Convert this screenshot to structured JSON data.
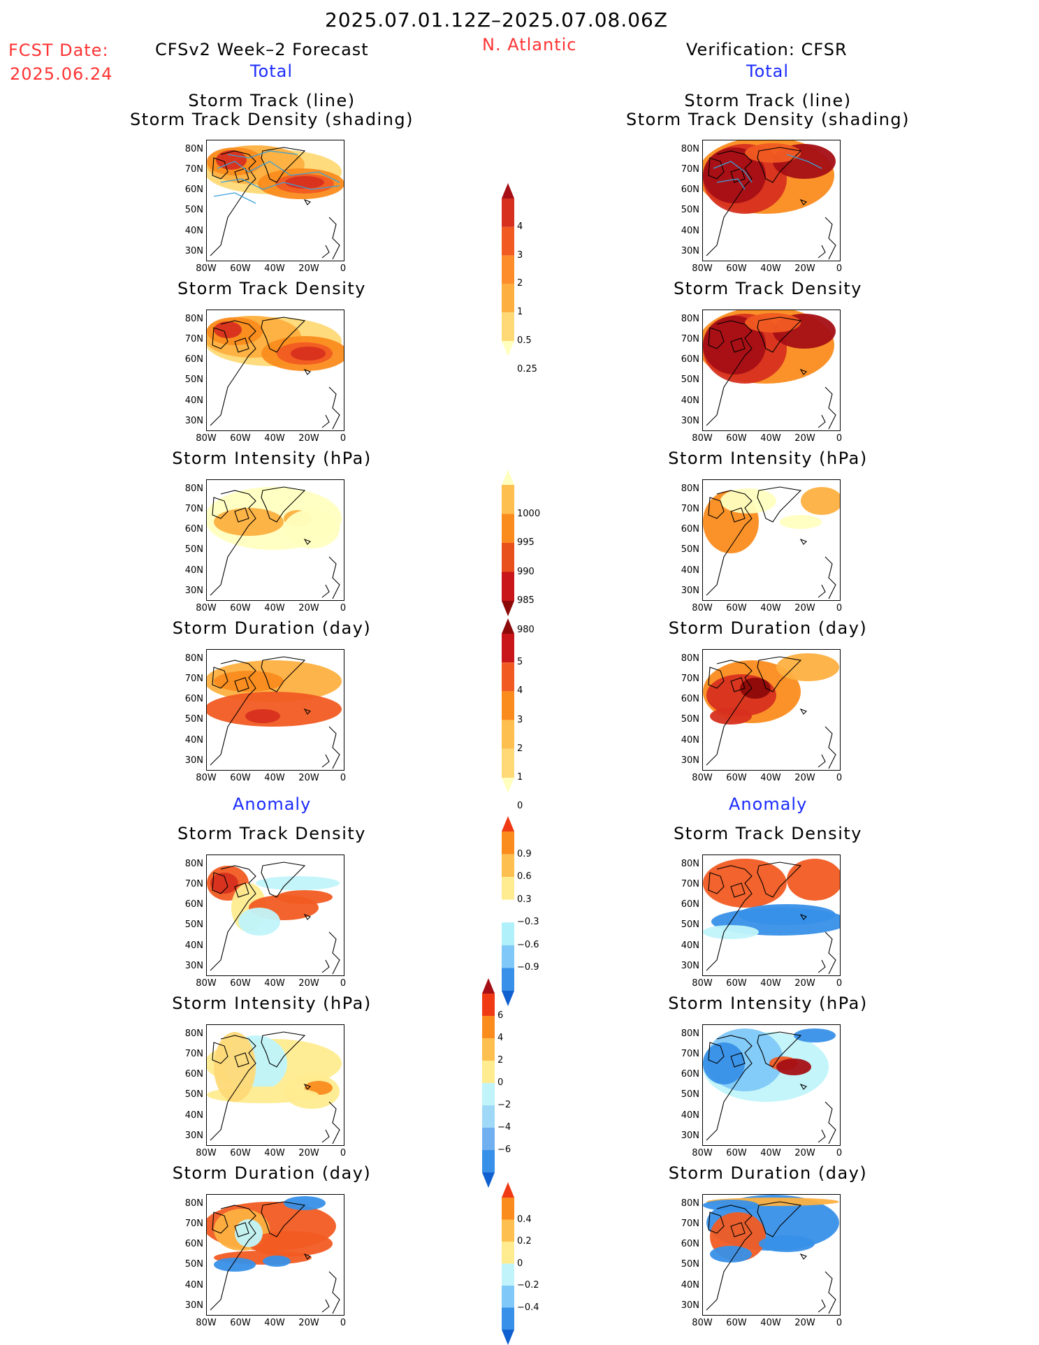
{
  "header": {
    "date_range": "2025.07.01.12Z–2025.07.08.06Z",
    "region": "N. Atlantic",
    "fcst_label": "FCST Date:",
    "fcst_date": "2025.06.24",
    "left_model": "CFSv2 Week–2 Forecast",
    "right_model": "Verification: CFSR",
    "total_label": "Total",
    "anomaly_label": "Anomaly"
  },
  "panels": {
    "track_title_1": "Storm Track (line)",
    "track_title_2": "Storm Track Density (shading)",
    "density": "Storm Track Density",
    "intensity": "Storm Intensity (hPa)",
    "duration": "Storm Duration (day)"
  },
  "axes": {
    "lat_ticks": [
      "80N",
      "70N",
      "60N",
      "50N",
      "40N",
      "30N"
    ],
    "lon_ticks": [
      "80W",
      "60W",
      "40W",
      "20W",
      "0"
    ]
  },
  "colorbars": {
    "density": {
      "labels": [
        "4",
        "3",
        "2",
        "1",
        "0.5",
        "0.25"
      ],
      "colors": [
        "#a50f15",
        "#d7301f",
        "#f15b22",
        "#fc8d2a",
        "#fdb040",
        "#fed976",
        "#ffffc0"
      ]
    },
    "intensity": {
      "labels": [
        "1000",
        "995",
        "990",
        "985",
        "980"
      ],
      "colors": [
        "#ffffc0",
        "#fdc050",
        "#fa8c1e",
        "#e8501c",
        "#c8161a",
        "#8c0a0a"
      ]
    },
    "duration": {
      "labels": [
        "5",
        "4",
        "3",
        "2",
        "1",
        "0"
      ],
      "colors": [
        "#8c0a0a",
        "#c8161a",
        "#f15b22",
        "#fa8c1e",
        "#fdc050",
        "#fed976",
        "#ffffc0"
      ]
    },
    "anom_density": {
      "labels": [
        "0.9",
        "0.6",
        "0.3",
        "−0.3",
        "−0.6",
        "−0.9"
      ],
      "colors": [
        "#f03a14",
        "#fa8c1e",
        "#fdc050",
        "#ffec90",
        "#ffffff",
        "#b0f0fa",
        "#80c8f8",
        "#3890e8",
        "#1060d0"
      ]
    },
    "anom_intensity": {
      "labels": [
        "6",
        "4",
        "2",
        "0",
        "−2",
        "−4",
        "−6"
      ],
      "colors": [
        "#a50f15",
        "#f03a14",
        "#fa8c1e",
        "#fdc050",
        "#ffec90",
        "#c0f4fa",
        "#a0d8f8",
        "#70b0f0",
        "#3890e8",
        "#1060d0"
      ]
    },
    "anom_duration": {
      "labels": [
        "0.4",
        "0.2",
        "0",
        "−0.2",
        "−0.4"
      ],
      "colors": [
        "#f03a14",
        "#fa8c1e",
        "#fdc050",
        "#ffec90",
        "#c0f4fa",
        "#80c8f8",
        "#3890e8",
        "#1060d0"
      ]
    }
  }
}
